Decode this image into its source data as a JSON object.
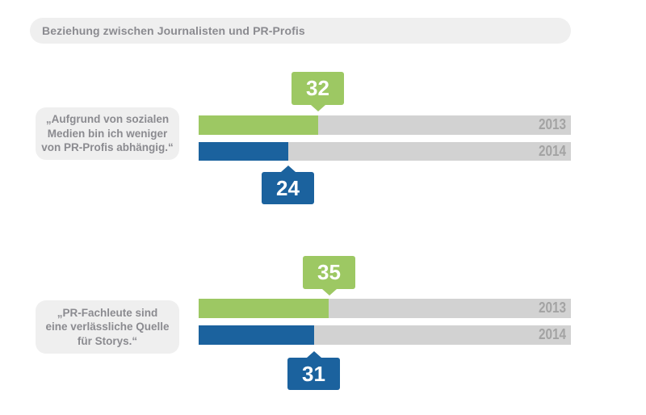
{
  "colors": {
    "bar_2013_green": "#9dc863",
    "bar_2014_blue": "#1b629e",
    "track_gray": "#d2d2d2",
    "pill_background": "#efefef",
    "label_text_gray": "#8b8b90",
    "year_text_gray": "#a3a3a3",
    "callout_text": "#ffffff"
  },
  "chart_data": {
    "type": "bar",
    "orientation": "horizontal",
    "title": "Beziehung zwischen Journalisten und PR-Profis",
    "unit": "percent",
    "xlim": [
      0,
      100
    ],
    "categories": [
      "2013",
      "2014"
    ],
    "legend_position": "inside-track-right",
    "grid": false,
    "groups": [
      {
        "statement": "„Aufgrund von sozialen Medien bin ich weniger von PR-Profis abhängig.“",
        "statement_lines": [
          "„Aufgrund von sozialen",
          "Medien bin ich weniger",
          "von PR-Profis abhängig.“"
        ],
        "series": [
          {
            "label": "2013",
            "value": 32
          },
          {
            "label": "2014",
            "value": 24
          }
        ]
      },
      {
        "statement": "„PR-Fachleute sind eine verlässliche Quelle für Storys.“",
        "statement_lines": [
          "„PR-Fachleute sind",
          "eine verlässliche Quelle",
          "für Storys.“"
        ],
        "series": [
          {
            "label": "2013",
            "value": 35
          },
          {
            "label": "2014",
            "value": 31
          }
        ]
      }
    ]
  }
}
